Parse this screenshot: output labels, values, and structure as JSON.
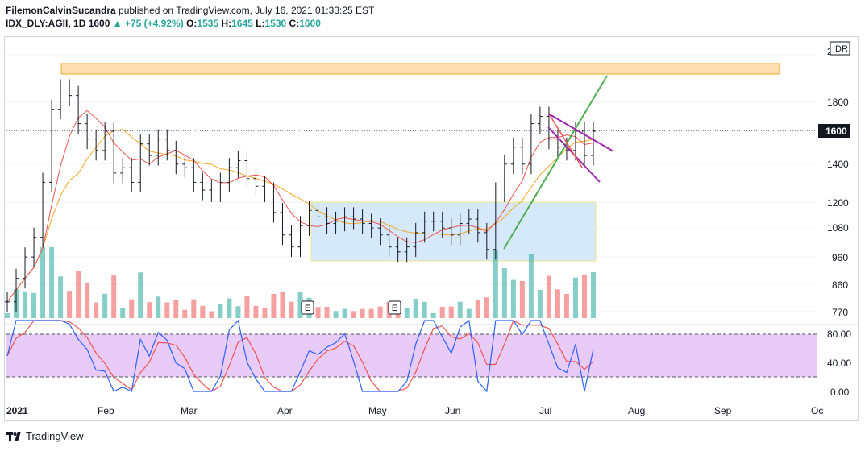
{
  "header": {
    "author": "FilemonCalvinSucandra",
    "published": "published on TradingView.com, July 16, 2021 01:33:25 EST",
    "symbol": "IDX_DLY:AGII, 1D",
    "last": "1600",
    "change": "+75 (+4.92%)",
    "o_label": "O:",
    "o": "1535",
    "h_label": "H:",
    "h": "1645",
    "l_label": "L:",
    "l": "1530",
    "c_label": "C:",
    "c": "1600"
  },
  "currency": "IDR",
  "footer": {
    "brand": "TradingView"
  },
  "colors": {
    "up": "#26a69a",
    "down": "#ef5350",
    "bar": "#131722",
    "ma_fast": "#ef5350",
    "ma_slow": "#f5a623",
    "rsi_k": "#2962ff",
    "rsi_d": "#ef5350",
    "rsi_band": "#e1bee7",
    "zone_supply": "#ffe0b2",
    "zone_range": "#d6e9fb",
    "trend_green": "#4caf50",
    "pattern_magenta": "#9c27b0"
  },
  "chart_data": {
    "type": "line",
    "title": "",
    "price_axis": {
      "ticks": [
        770,
        860,
        960,
        1080,
        1200,
        1400,
        1600,
        1800,
        "2"
      ],
      "last_label": "1600",
      "scale": "log"
    },
    "time_axis": {
      "ticks": [
        "2021",
        "Feb",
        "Mar",
        "Apr",
        "May",
        "Jun",
        "Jul",
        "Aug",
        "Sep",
        "Oc"
      ]
    },
    "ohlc_closes": {
      "x": [
        "Jan 1",
        "Jan 4",
        "Jan 6",
        "Jan 8",
        "Jan 11",
        "Jan 13",
        "Jan 15",
        "Jan 18",
        "Jan 20",
        "Jan 22",
        "Jan 25",
        "Jan 27",
        "Jan 29",
        "Feb 2",
        "Feb 4",
        "Feb 8",
        "Feb 10",
        "Feb 15",
        "Feb 17",
        "Feb 19",
        "Feb 23",
        "Feb 25",
        "Mar 1",
        "Mar 3",
        "Mar 5",
        "Mar 9",
        "Mar 12",
        "Mar 16",
        "Mar 19",
        "Mar 23",
        "Mar 26",
        "Mar 30",
        "Apr 1",
        "Apr 5",
        "Apr 7",
        "Apr 9",
        "Apr 13",
        "Apr 16",
        "Apr 20",
        "Apr 23",
        "Apr 27",
        "Apr 30",
        "May 4",
        "May 7",
        "May 11",
        "May 14",
        "May 18",
        "May 21",
        "May 25",
        "May 28",
        "Jun 1",
        "Jun 4",
        "Jun 8",
        "Jun 11",
        "Jun 15",
        "Jun 18",
        "Jun 21",
        "Jun 23",
        "Jun 25",
        "Jun 28",
        "Jun 30",
        "Jul 2",
        "Jul 6",
        "Jul 8",
        "Jul 12",
        "Jul 14",
        "Jul 16"
      ],
      "close": [
        800,
        880,
        960,
        1040,
        1300,
        1750,
        1900,
        1850,
        1650,
        1550,
        1480,
        1600,
        1350,
        1380,
        1300,
        1520,
        1450,
        1550,
        1480,
        1400,
        1380,
        1300,
        1260,
        1250,
        1300,
        1380,
        1420,
        1320,
        1280,
        1250,
        1150,
        1050,
        1000,
        1090,
        1160,
        1130,
        1100,
        1110,
        1130,
        1120,
        1100,
        1080,
        1050,
        1000,
        980,
        1000,
        1060,
        1110,
        1110,
        1080,
        1050,
        1100,
        1120,
        1060,
        990,
        1250,
        1400,
        1500,
        1400,
        1650,
        1700,
        1550,
        1500,
        1480,
        1600,
        1450,
        1600
      ]
    },
    "volume": {
      "x": [
        "Jan",
        "Feb",
        "Mar",
        "Apr",
        "May",
        "Jun",
        "Jul"
      ],
      "values": [
        180,
        140,
        90,
        70,
        50,
        160,
        420
      ],
      "unit": "relative"
    },
    "moving_averages": [
      {
        "name": "",
        "color": "#ef5350"
      },
      {
        "name": "",
        "color": "#f5a623"
      }
    ],
    "annotations": [
      {
        "type": "zone",
        "label": "",
        "from": "Jan 18",
        "to": "Sep 20",
        "price_low": 1960,
        "price_high": 2020
      },
      {
        "type": "zone",
        "label": "",
        "from": "Apr 9",
        "to": "Jul 20",
        "price_low": 950,
        "price_high": 1200
      },
      {
        "type": "earnings",
        "label": "E",
        "at": "Apr 9"
      },
      {
        "type": "earnings",
        "label": "E",
        "at": "May 12"
      },
      {
        "type": "trendline",
        "color": "green",
        "from": [
          "Jun 21",
          990
        ],
        "to": [
          "Jul 24",
          1950
        ]
      },
      {
        "type": "wedge",
        "color": "magenta",
        "from": "Jul 1",
        "to": "Jul 22"
      }
    ],
    "rsi": {
      "ticks": [
        "80.00",
        "40.00",
        "0.00"
      ],
      "ylim": [
        0,
        100
      ],
      "band": [
        20,
        80
      ]
    }
  }
}
